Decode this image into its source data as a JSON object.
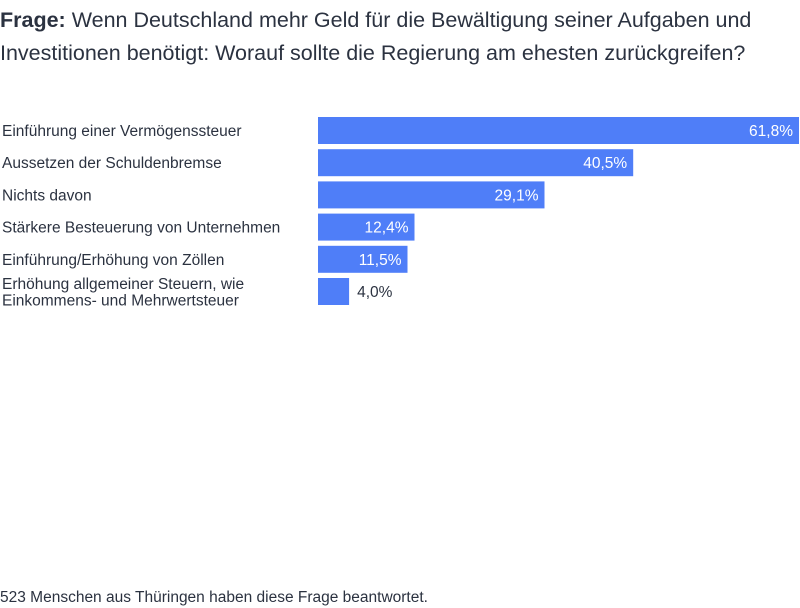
{
  "question": {
    "prefix": "Frage:",
    "text": "Wenn Deutschland mehr Geld für die Bewältigung seiner Aufgaben und Investitionen benötigt: Worauf sollte die Regierung am ehesten zurückgreifen?"
  },
  "chart_data": {
    "type": "bar",
    "orientation": "horizontal",
    "categories": [
      [
        "Einführung einer Vermögenssteuer"
      ],
      [
        "Aussetzen der Schuldenbremse"
      ],
      [
        "Nichts davon"
      ],
      [
        "Stärkere Besteuerung von Unternehmen"
      ],
      [
        "Einführung/Erhöhung von Zöllen"
      ],
      [
        "Erhöhung allgemeiner Steuern, wie",
        "Einkommens- und Mehrwertsteuer"
      ]
    ],
    "values": [
      61.8,
      40.5,
      29.1,
      12.4,
      11.5,
      4.0
    ],
    "value_labels": [
      "61,8%",
      "40,5%",
      "29,1%",
      "12,4%",
      "11,5%",
      "4,0%"
    ],
    "xlim": [
      0,
      61.8
    ],
    "bar_color": "#4f7ef8",
    "grid": false,
    "legend": "none"
  },
  "footer": "523 Menschen aus Thüringen haben diese Frage beantwortet."
}
